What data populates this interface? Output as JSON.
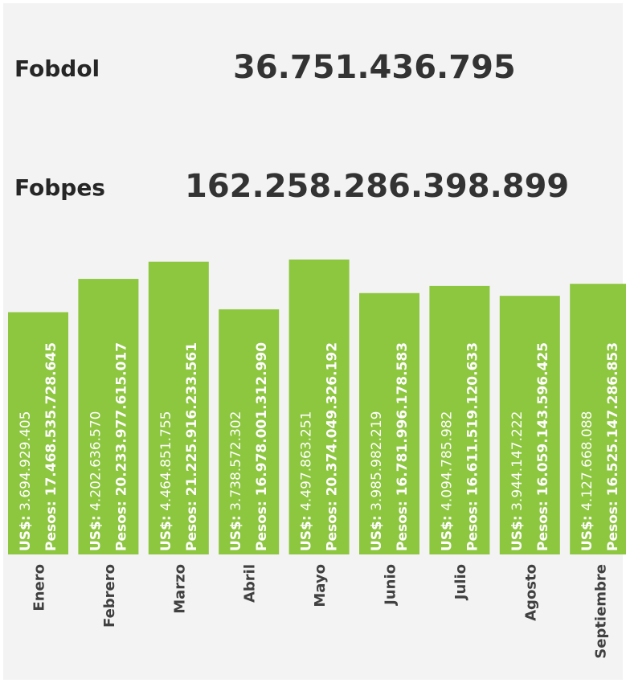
{
  "kpis": [
    {
      "label": "Fobdol",
      "value": "36.751.436.795"
    },
    {
      "label": "Fobpes",
      "value": "162.258.286.398.899"
    }
  ],
  "chart_data": {
    "type": "bar",
    "categories": [
      "Enero",
      "Febrero",
      "Marzo",
      "Abril",
      "Mayo",
      "Junio",
      "Julio",
      "Agosto",
      "Septiembre"
    ],
    "series": [
      {
        "name": "US$:",
        "color": "#8dc63f",
        "values": [
          3694929405,
          4202636570,
          4464851755,
          3738572302,
          4497863251,
          3985982219,
          4094785982,
          3944147222,
          4127668088
        ],
        "value_labels": [
          "3.694.929.405",
          "4.202.636.570",
          "4.464.851.755",
          "3.738.572.302",
          "4.497.863.251",
          "3.985.982.219",
          "4.094.785.982",
          "3.944.147.222",
          "4.127.668.088"
        ]
      },
      {
        "name": "Pesos:",
        "values": [
          17468535728645,
          20233977615017,
          21225916233561,
          16978001312990,
          20374049326192,
          16781996178583,
          16611519120633,
          16059143596425,
          16525147286853
        ],
        "value_labels": [
          "17.468.535.728.645",
          "20.233.977.615.017",
          "21.225.916.233.561",
          "16.978.001.312.990",
          "20.374.049.326.192",
          "16.781.996.178.583",
          "16.611.519.120.633",
          "16.059.143.596.425",
          "16.525.147.286.853"
        ]
      }
    ]
  }
}
